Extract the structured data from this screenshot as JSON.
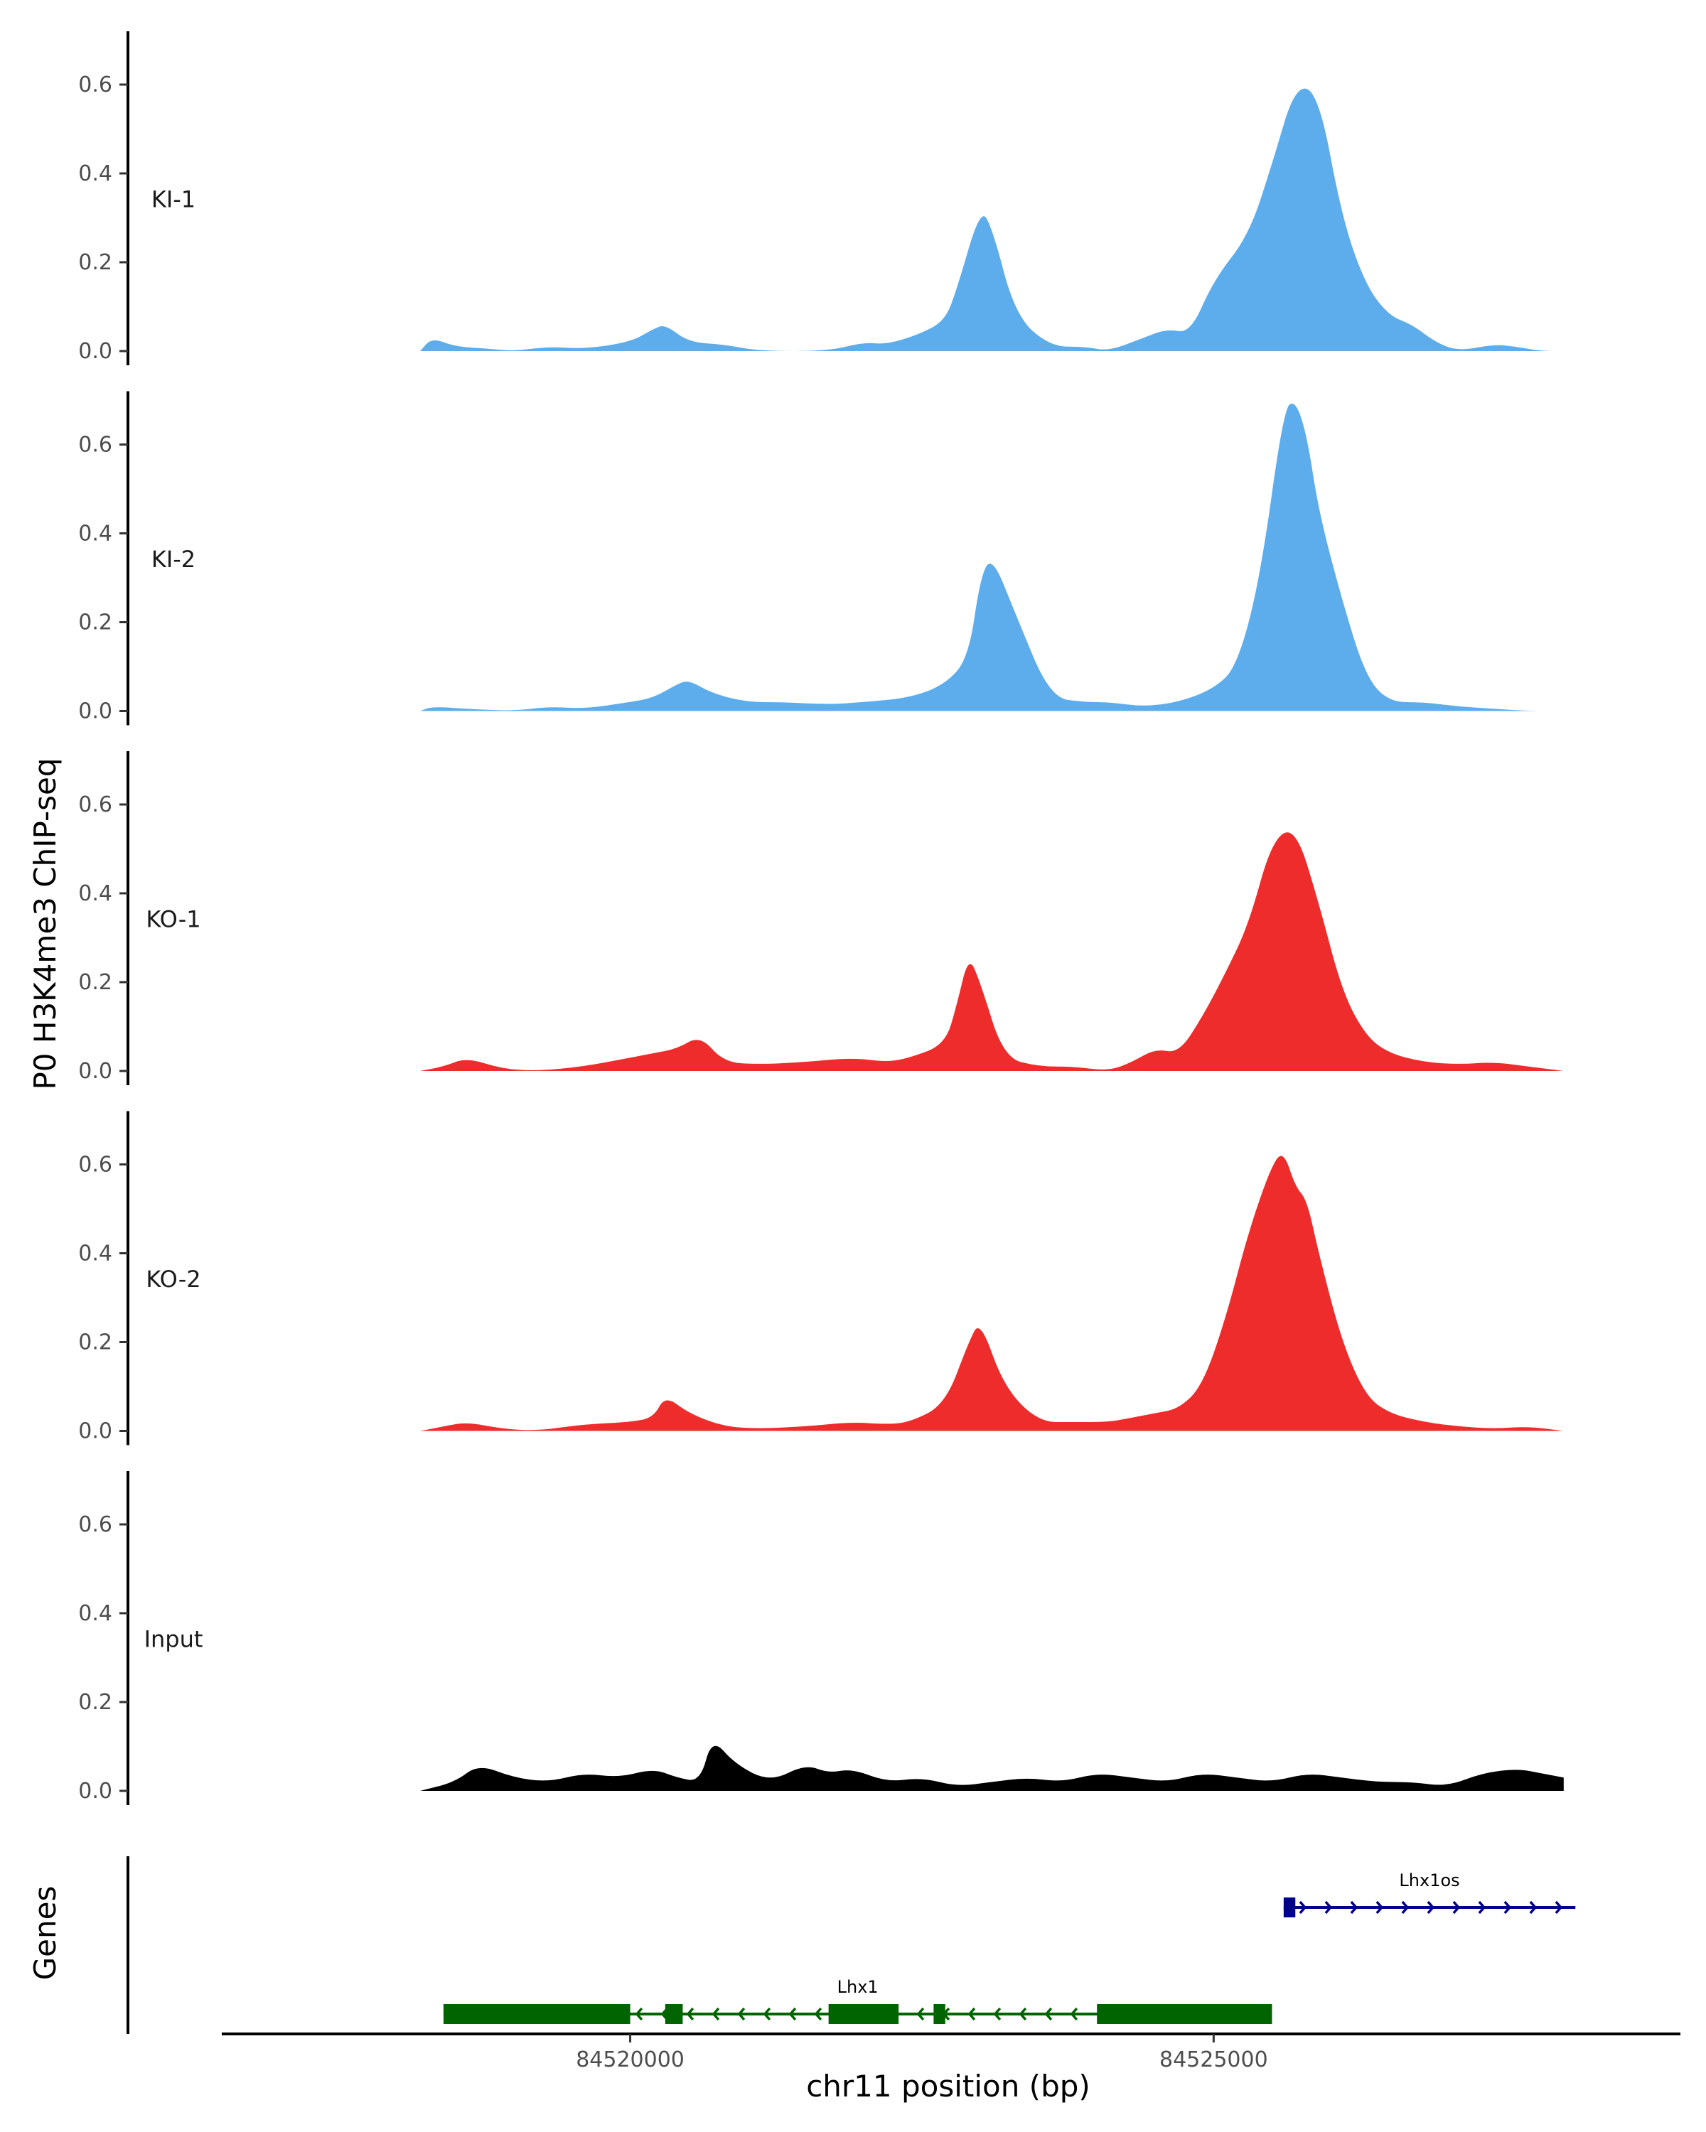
{
  "chart_data": {
    "type": "area",
    "ylabel": "P0 H3K4me3 ChIP-seq",
    "xlabel": "chr11 position (bp)",
    "gene_axis_label": "Genes",
    "xlim": [
      84516500,
      84529000
    ],
    "ylim": [
      0,
      0.72
    ],
    "y_ticks": [
      0,
      0.2,
      0.4,
      0.6
    ],
    "y_tick_labels": [
      "0.0",
      "0.2",
      "0.4",
      "0.6"
    ],
    "x_ticks": [
      84520000,
      84525000
    ],
    "x_tick_labels": [
      "84520000",
      "84525000"
    ],
    "grid": false,
    "colors": {
      "KI": "#5DADEC",
      "KO": "#EE2C2C",
      "Input": "#000000",
      "Lhx1": "#006400",
      "Lhx1os": "#00008B"
    },
    "series": [
      {
        "name": "KI-1",
        "color": "#5DADEC",
        "x": [
          84518200,
          84518300,
          84518500,
          84518800,
          84519000,
          84519300,
          84519600,
          84520000,
          84520200,
          84520300,
          84520500,
          84520800,
          84521100,
          84521700,
          84522000,
          84522200,
          84522500,
          84522700,
          84522800,
          84523000,
          84523100,
          84523300,
          84523600,
          84523900,
          84524100,
          84524400,
          84524600,
          84524800,
          84525000,
          84525300,
          84525500,
          84525700,
          84525900,
          84526100,
          84526300,
          84526500,
          84526700,
          84526900,
          84527100,
          84527400,
          84527600,
          84527800,
          84528000
        ],
        "y": [
          0.0,
          0.03,
          0.01,
          0.005,
          0.0,
          0.01,
          0.005,
          0.02,
          0.05,
          0.06,
          0.02,
          0.015,
          0.0,
          0.0,
          0.02,
          0.015,
          0.04,
          0.07,
          0.14,
          0.32,
          0.28,
          0.08,
          0.01,
          0.01,
          0.0,
          0.03,
          0.05,
          0.04,
          0.16,
          0.26,
          0.42,
          0.6,
          0.58,
          0.3,
          0.15,
          0.08,
          0.06,
          0.02,
          0.0,
          0.015,
          0.01,
          0.0,
          0.0
        ]
      },
      {
        "name": "KI-2",
        "color": "#5DADEC",
        "x": [
          84518200,
          84518300,
          84518600,
          84519000,
          84519300,
          84519600,
          84520000,
          84520200,
          84520400,
          84520500,
          84520700,
          84521000,
          84521300,
          84521700,
          84522000,
          84522400,
          84522700,
          84522900,
          84523000,
          84523100,
          84523300,
          84523600,
          84523900,
          84524100,
          84524400,
          84524700,
          84525000,
          84525200,
          84525400,
          84525600,
          84525700,
          84525800,
          84525900,
          84526100,
          84526300,
          84526500,
          84526800,
          84527100,
          84527400,
          84527700,
          84528000
        ],
        "y": [
          0.0,
          0.01,
          0.005,
          0.0,
          0.01,
          0.005,
          0.02,
          0.03,
          0.06,
          0.07,
          0.04,
          0.02,
          0.02,
          0.015,
          0.02,
          0.03,
          0.06,
          0.12,
          0.3,
          0.35,
          0.22,
          0.03,
          0.02,
          0.02,
          0.01,
          0.02,
          0.05,
          0.1,
          0.3,
          0.68,
          0.7,
          0.62,
          0.45,
          0.25,
          0.08,
          0.02,
          0.02,
          0.01,
          0.005,
          0.0,
          0.0
        ]
      },
      {
        "name": "KO-1",
        "color": "#EE2C2C",
        "x": [
          84518200,
          84518400,
          84518600,
          84518900,
          84519200,
          84519600,
          84520000,
          84520200,
          84520400,
          84520600,
          84520800,
          84521100,
          84521500,
          84521900,
          84522200,
          84522400,
          84522700,
          84522800,
          84522900,
          84523000,
          84523200,
          84523500,
          84523800,
          84524100,
          84524300,
          84524500,
          84524700,
          84524900,
          84525100,
          84525300,
          84525500,
          84525700,
          84525900,
          84526100,
          84526300,
          84526500,
          84526800,
          84527100,
          84527400,
          84527700,
          84528000
        ],
        "y": [
          0.0,
          0.01,
          0.03,
          0.005,
          0.0,
          0.01,
          0.03,
          0.04,
          0.05,
          0.08,
          0.02,
          0.015,
          0.02,
          0.03,
          0.02,
          0.03,
          0.06,
          0.15,
          0.26,
          0.2,
          0.03,
          0.01,
          0.01,
          0.0,
          0.02,
          0.05,
          0.04,
          0.12,
          0.22,
          0.33,
          0.52,
          0.55,
          0.38,
          0.18,
          0.08,
          0.04,
          0.02,
          0.015,
          0.02,
          0.01,
          0.0
        ]
      },
      {
        "name": "KO-2",
        "color": "#EE2C2C",
        "x": [
          84518200,
          84518400,
          84518600,
          84518900,
          84519200,
          84519600,
          84520000,
          84520200,
          84520300,
          84520500,
          84520800,
          84521100,
          84521500,
          84521900,
          84522200,
          84522400,
          84522700,
          84522900,
          84523000,
          84523200,
          84523500,
          84523800,
          84524100,
          84524300,
          84524500,
          84524700,
          84524900,
          84525100,
          84525300,
          84525500,
          84525600,
          84525700,
          84525800,
          84525900,
          84526100,
          84526300,
          84526500,
          84526800,
          84527100,
          84527400,
          84527700,
          84528000
        ],
        "y": [
          0.0,
          0.01,
          0.02,
          0.005,
          0.0,
          0.015,
          0.02,
          0.03,
          0.08,
          0.04,
          0.01,
          0.005,
          0.01,
          0.02,
          0.015,
          0.02,
          0.06,
          0.2,
          0.25,
          0.1,
          0.02,
          0.02,
          0.02,
          0.03,
          0.04,
          0.05,
          0.1,
          0.25,
          0.45,
          0.6,
          0.63,
          0.55,
          0.52,
          0.4,
          0.2,
          0.08,
          0.04,
          0.02,
          0.01,
          0.005,
          0.01,
          0.0
        ]
      },
      {
        "name": "Input",
        "color": "#000000",
        "x": [
          84518200,
          84518500,
          84518700,
          84519000,
          84519300,
          84519600,
          84519900,
          84520200,
          84520400,
          84520600,
          84520700,
          84520900,
          84521200,
          84521500,
          84521700,
          84521900,
          84522200,
          84522500,
          84522800,
          84523100,
          84523400,
          84523700,
          84524000,
          84524300,
          84524600,
          84524900,
          84525200,
          84525500,
          84525800,
          84526100,
          84526400,
          84526700,
          84527000,
          84527300,
          84527600,
          84527800,
          84528000
        ],
        "y": [
          0.0,
          0.02,
          0.06,
          0.03,
          0.02,
          0.04,
          0.03,
          0.05,
          0.03,
          0.02,
          0.12,
          0.06,
          0.02,
          0.06,
          0.04,
          0.05,
          0.02,
          0.03,
          0.01,
          0.02,
          0.03,
          0.02,
          0.04,
          0.03,
          0.02,
          0.04,
          0.03,
          0.02,
          0.04,
          0.03,
          0.02,
          0.02,
          0.01,
          0.04,
          0.05,
          0.04,
          0.03
        ]
      }
    ],
    "genes": [
      {
        "name": "Lhx1",
        "strand": "-",
        "color": "#006400",
        "start": 84518400,
        "end": 84525500,
        "exons": [
          [
            84518400,
            84520000
          ],
          [
            84520300,
            84520450
          ],
          [
            84521700,
            84522300
          ],
          [
            84522600,
            84522700
          ],
          [
            84524000,
            84525500
          ]
        ]
      },
      {
        "name": "Lhx1os",
        "strand": "+",
        "color": "#00008B",
        "start": 84525600,
        "end": 84528100,
        "exons": [
          [
            84525600,
            84525700
          ]
        ]
      }
    ]
  }
}
